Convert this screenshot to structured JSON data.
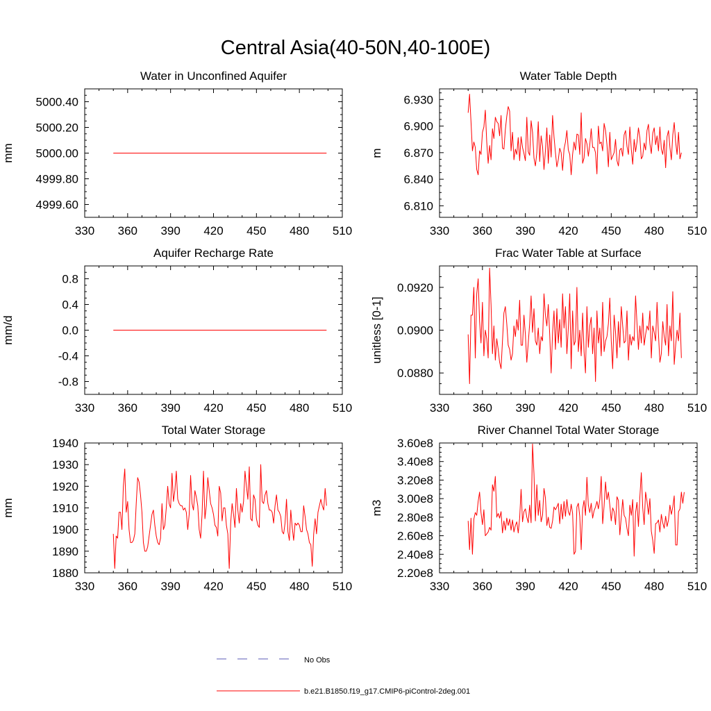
{
  "title": "Central Asia(40-50N,40-100E)",
  "legend": {
    "entries": [
      {
        "label": "No Obs",
        "color": "#5a5ab4",
        "style": "dashed"
      },
      {
        "label": "b.e21.B1850.f19_g17.CMIP6-piControl-2deg.001",
        "color": "#ff0000",
        "style": "solid"
      }
    ],
    "placement": "bottom-center"
  },
  "chart_data": [
    {
      "type": "line",
      "title": "Water in Unconfined Aquifer",
      "xlabel": "",
      "ylabel": "mm",
      "xlim": [
        330,
        510
      ],
      "ylim": [
        4999.5,
        5000.5
      ],
      "xticks": [
        "330",
        "360",
        "390",
        "420",
        "450",
        "480",
        "510"
      ],
      "yticks": [
        "4999.60",
        "4999.80",
        "5000.00",
        "5000.20",
        "5000.40"
      ],
      "x_start": 350,
      "x_end": 499,
      "series": [
        {
          "color": "#ff0000",
          "constant": 5000.0
        }
      ]
    },
    {
      "type": "line",
      "title": "Water Table Depth",
      "xlabel": "",
      "ylabel": "m",
      "xlim": [
        330,
        510
      ],
      "ylim": [
        6.797,
        6.942
      ],
      "xticks": [
        "330",
        "360",
        "390",
        "420",
        "450",
        "480",
        "510"
      ],
      "yticks": [
        "6.810",
        "6.840",
        "6.870",
        "6.900",
        "6.930"
      ],
      "x_start": 350,
      "series": [
        {
          "color": "#ff0000",
          "values": [
            6.915,
            6.936,
            6.905,
            6.872,
            6.882,
            6.876,
            6.851,
            6.845,
            6.872,
            6.868,
            6.893,
            6.899,
            6.918,
            6.882,
            6.858,
            6.878,
            6.862,
            6.897,
            6.886,
            6.91,
            6.905,
            6.903,
            6.889,
            6.912,
            6.875,
            6.874,
            6.896,
            6.911,
            6.922,
            6.917,
            6.872,
            6.893,
            6.862,
            6.874,
            6.868,
            6.887,
            6.861,
            6.888,
            6.876,
            6.869,
            6.861,
            6.91,
            6.871,
            6.867,
            6.906,
            6.893,
            6.864,
            6.855,
            6.87,
            6.905,
            6.86,
            6.889,
            6.877,
            6.851,
            6.872,
            6.898,
            6.858,
            6.89,
            6.865,
            6.912,
            6.888,
            6.87,
            6.854,
            6.862,
            6.875,
            6.87,
            6.85,
            6.874,
            6.882,
            6.895,
            6.873,
            6.868,
            6.845,
            6.868,
            6.882,
            6.873,
            6.891,
            6.89,
            6.868,
            6.915,
            6.858,
            6.864,
            6.886,
            6.88,
            6.866,
            6.879,
            6.897,
            6.876,
            6.876,
            6.87,
            6.846,
            6.9,
            6.88,
            6.882,
            6.872,
            6.903,
            6.895,
            6.879,
            6.854,
            6.893,
            6.862,
            6.866,
            6.87,
            6.885,
            6.861,
            6.855,
            6.873,
            6.875,
            6.866,
            6.89,
            6.895,
            6.877,
            6.868,
            6.899,
            6.874,
            6.857,
            6.885,
            6.871,
            6.882,
            6.898,
            6.887,
            6.863,
            6.866,
            6.881,
            6.873,
            6.895,
            6.902,
            6.88,
            6.869,
            6.892,
            6.898,
            6.879,
            6.889,
            6.872,
            6.899,
            6.874,
            6.868,
            6.884,
            6.853,
            6.888,
            6.895,
            6.876,
            6.862,
            6.89,
            6.904,
            6.882,
            6.868,
            6.893,
            6.863,
            6.87
          ]
        }
      ]
    },
    {
      "type": "line",
      "title": "Aquifer Recharge Rate",
      "xlabel": "",
      "ylabel": "mm/d",
      "xlim": [
        330,
        510
      ],
      "ylim": [
        -1.0,
        1.0
      ],
      "xticks": [
        "330",
        "360",
        "390",
        "420",
        "450",
        "480",
        "510"
      ],
      "yticks": [
        "-0.8",
        "-0.4",
        "0.0",
        "0.4",
        "0.8"
      ],
      "x_start": 350,
      "x_end": 499,
      "series": [
        {
          "color": "#ff0000",
          "constant": 0.0
        }
      ]
    },
    {
      "type": "line",
      "title": "Frac Water Table at Surface",
      "xlabel": "",
      "ylabel": "unitless [0-1]",
      "xlim": [
        330,
        510
      ],
      "ylim": [
        0.087,
        0.093
      ],
      "xticks": [
        "330",
        "360",
        "390",
        "420",
        "450",
        "480",
        "510"
      ],
      "yticks": [
        "0.0880",
        "0.0900",
        "0.0920"
      ],
      "x_start": 350,
      "series": [
        {
          "color": "#ff0000",
          "values": [
            0.0898,
            0.0875,
            0.0907,
            0.0907,
            0.092,
            0.0887,
            0.0917,
            0.0924,
            0.0904,
            0.0894,
            0.0913,
            0.0888,
            0.09,
            0.0896,
            0.0887,
            0.0929,
            0.0912,
            0.0889,
            0.0902,
            0.0886,
            0.0896,
            0.0891,
            0.0885,
            0.0882,
            0.0895,
            0.0908,
            0.0911,
            0.0903,
            0.0893,
            0.0891,
            0.0886,
            0.0889,
            0.0902,
            0.0897,
            0.0905,
            0.09,
            0.0914,
            0.0893,
            0.0893,
            0.0907,
            0.0898,
            0.0885,
            0.0894,
            0.0903,
            0.0916,
            0.0899,
            0.091,
            0.0895,
            0.0893,
            0.0901,
            0.0889,
            0.0897,
            0.0895,
            0.0917,
            0.0907,
            0.0902,
            0.0912,
            0.0898,
            0.088,
            0.0899,
            0.0909,
            0.0891,
            0.091,
            0.0894,
            0.0905,
            0.0892,
            0.0917,
            0.0901,
            0.0911,
            0.0889,
            0.0901,
            0.0917,
            0.0882,
            0.0909,
            0.0893,
            0.0895,
            0.092,
            0.089,
            0.09,
            0.0888,
            0.0908,
            0.089,
            0.088,
            0.0911,
            0.0892,
            0.0902,
            0.0906,
            0.0889,
            0.0901,
            0.0876,
            0.0909,
            0.0894,
            0.0901,
            0.0888,
            0.0913,
            0.089,
            0.0895,
            0.0897,
            0.0903,
            0.0915,
            0.0895,
            0.0882,
            0.0907,
            0.0899,
            0.0887,
            0.0904,
            0.0892,
            0.0911,
            0.0902,
            0.0894,
            0.0895,
            0.0909,
            0.0886,
            0.0898,
            0.0893,
            0.0897,
            0.0895,
            0.0916,
            0.0903,
            0.0891,
            0.0902,
            0.0894,
            0.0908,
            0.0893,
            0.0898,
            0.0902,
            0.09,
            0.0909,
            0.0887,
            0.0902,
            0.0899,
            0.0895,
            0.0913,
            0.0898,
            0.0885,
            0.0889,
            0.0904,
            0.0897,
            0.0893,
            0.0912,
            0.0888,
            0.0902,
            0.0895,
            0.0918,
            0.0884,
            0.0893,
            0.09,
            0.0895,
            0.0908,
            0.0887
          ]
        }
      ]
    },
    {
      "type": "line",
      "title": "Total Water Storage",
      "xlabel": "",
      "ylabel": "mm",
      "xlim": [
        330,
        510
      ],
      "ylim": [
        1880,
        1940
      ],
      "xticks": [
        "330",
        "360",
        "390",
        "420",
        "450",
        "480",
        "510"
      ],
      "yticks": [
        "1880",
        "1890",
        "1900",
        "1910",
        "1920",
        "1930",
        "1940"
      ],
      "x_start": 350,
      "series": [
        {
          "color": "#ff0000",
          "values": [
            1898,
            1882,
            1897,
            1896,
            1908,
            1908,
            1900,
            1920,
            1928,
            1908,
            1913,
            1900,
            1894,
            1894,
            1895,
            1898,
            1912,
            1924,
            1922,
            1916,
            1908,
            1894,
            1890,
            1890,
            1892,
            1897,
            1902,
            1907,
            1909,
            1902,
            1897,
            1894,
            1893,
            1896,
            1912,
            1900,
            1902,
            1910,
            1920,
            1912,
            1910,
            1926,
            1913,
            1918,
            1927,
            1914,
            1912,
            1911,
            1911,
            1909,
            1910,
            1908,
            1900,
            1907,
            1925,
            1912,
            1909,
            1918,
            1915,
            1911,
            1900,
            1896,
            1907,
            1927,
            1905,
            1911,
            1924,
            1918,
            1912,
            1910,
            1907,
            1902,
            1901,
            1897,
            1920,
            1917,
            1904,
            1910,
            1910,
            1902,
            1898,
            1882,
            1903,
            1912,
            1907,
            1901,
            1919,
            1909,
            1903,
            1912,
            1908,
            1913,
            1927,
            1920,
            1914,
            1929,
            1905,
            1904,
            1916,
            1914,
            1905,
            1902,
            1901,
            1930,
            1913,
            1912,
            1916,
            1918,
            1912,
            1909,
            1909,
            1908,
            1903,
            1911,
            1916,
            1909,
            1908,
            1906,
            1899,
            1898,
            1903,
            1914,
            1899,
            1895,
            1909,
            1901,
            1895,
            1903,
            1902,
            1903,
            1902,
            1899,
            1899,
            1911,
            1906,
            1900,
            1898,
            1894,
            1893,
            1883,
            1898,
            1905,
            1898,
            1908,
            1911,
            1914,
            1911,
            1909,
            1919,
            1911
          ]
        }
      ]
    },
    {
      "type": "line",
      "title": "River Channel Total Water Storage",
      "xlabel": "",
      "ylabel": "m3",
      "xlim": [
        330,
        510
      ],
      "ylim": [
        220000000.0,
        360000000.0
      ],
      "xticks": [
        "330",
        "360",
        "390",
        "420",
        "450",
        "480",
        "510"
      ],
      "yticks": [
        "2.20e8",
        "2.40e8",
        "2.60e8",
        "2.80e8",
        "3.00e8",
        "3.20e8",
        "3.40e8",
        "3.60e8"
      ],
      "x_start": 350,
      "series": [
        {
          "color": "#ff0000",
          "values": [
            276000000.0,
            245000000.0,
            279000000.0,
            240000000.0,
            278000000.0,
            285000000.0,
            282000000.0,
            297000000.0,
            307000000.0,
            285000000.0,
            272000000.0,
            288000000.0,
            260000000.0,
            262000000.0,
            264000000.0,
            269000000.0,
            266000000.0,
            315000000.0,
            308000000.0,
            324000000.0,
            280000000.0,
            284000000.0,
            279000000.0,
            286000000.0,
            263000000.0,
            276000000.0,
            266000000.0,
            279000000.0,
            271000000.0,
            278000000.0,
            266000000.0,
            277000000.0,
            264000000.0,
            271000000.0,
            275000000.0,
            263000000.0,
            279000000.0,
            310000000.0,
            275000000.0,
            286000000.0,
            289000000.0,
            280000000.0,
            274000000.0,
            293000000.0,
            274000000.0,
            359000000.0,
            327000000.0,
            276000000.0,
            315000000.0,
            282000000.0,
            298000000.0,
            275000000.0,
            282000000.0,
            311000000.0,
            301000000.0,
            271000000.0,
            280000000.0,
            269000000.0,
            268000000.0,
            276000000.0,
            291000000.0,
            288000000.0,
            291000000.0,
            295000000.0,
            273000000.0,
            294000000.0,
            278000000.0,
            297000000.0,
            281000000.0,
            299000000.0,
            286000000.0,
            282000000.0,
            294000000.0,
            284000000.0,
            240000000.0,
            243000000.0,
            291000000.0,
            295000000.0,
            281000000.0,
            245000000.0,
            289000000.0,
            298000000.0,
            282000000.0,
            323000000.0,
            293000000.0,
            285000000.0,
            295000000.0,
            279000000.0,
            287000000.0,
            291000000.0,
            297000000.0,
            289000000.0,
            299000000.0,
            324000000.0,
            273000000.0,
            292000000.0,
            318000000.0,
            299000000.0,
            307000000.0,
            293000000.0,
            276000000.0,
            290000000.0,
            286000000.0,
            272000000.0,
            302000000.0,
            298000000.0,
            261000000.0,
            280000000.0,
            299000000.0,
            282000000.0,
            279000000.0,
            268000000.0,
            260000000.0,
            293000000.0,
            282000000.0,
            299000000.0,
            238000000.0,
            285000000.0,
            296000000.0,
            270000000.0,
            302000000.0,
            328000000.0,
            290000000.0,
            272000000.0,
            307000000.0,
            297000000.0,
            283000000.0,
            300000000.0,
            265000000.0,
            255000000.0,
            241000000.0,
            273000000.0,
            274000000.0,
            277000000.0,
            264000000.0,
            283000000.0,
            274000000.0,
            268000000.0,
            281000000.0,
            270000000.0,
            277000000.0,
            293000000.0,
            283000000.0,
            291000000.0,
            303000000.0,
            250000000.0,
            250000000.0,
            286000000.0,
            289000000.0,
            307000000.0,
            295000000.0,
            307000000.0
          ]
        }
      ]
    }
  ]
}
